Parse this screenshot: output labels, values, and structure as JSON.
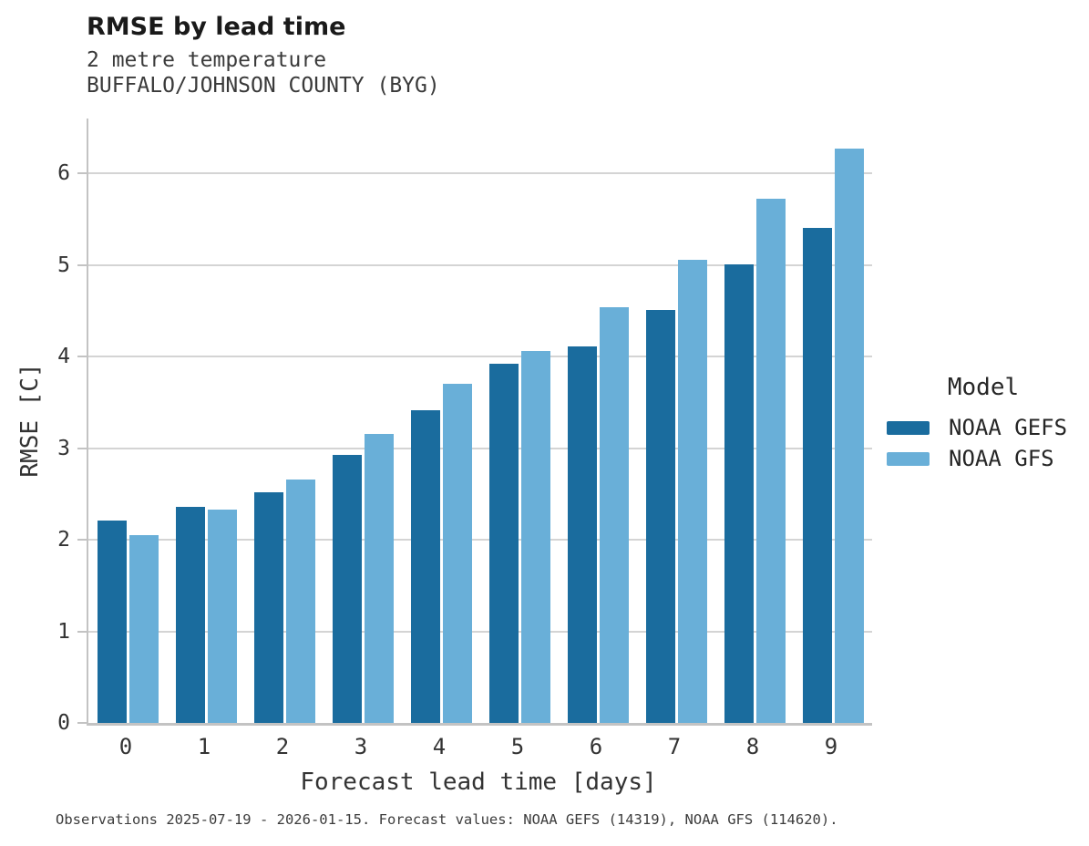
{
  "header": {
    "title": "RMSE by lead time",
    "subtitle_line1": "2 metre temperature",
    "subtitle_line2": "BUFFALO/JOHNSON COUNTY (BYG)"
  },
  "axes": {
    "y_label": "RMSE [C]",
    "x_label": "Forecast lead time [days]",
    "y_ticks": [
      0,
      1,
      2,
      3,
      4,
      5,
      6
    ],
    "y_max": 6.6
  },
  "legend": {
    "title": "Model",
    "items": [
      {
        "label": "NOAA GEFS",
        "color": "#1a6c9e"
      },
      {
        "label": "NOAA GFS",
        "color": "#69afd8"
      }
    ]
  },
  "footer": {
    "text": "Observations 2025-07-19 - 2026-01-15. Forecast values: NOAA GEFS (14319), NOAA GFS (114620)."
  },
  "chart_data": {
    "type": "bar",
    "title": "RMSE by lead time",
    "subtitle_lines": [
      "2 metre temperature",
      "BUFFALO/JOHNSON COUNTY (BYG)"
    ],
    "categories": [
      "0",
      "1",
      "2",
      "3",
      "4",
      "5",
      "6",
      "7",
      "8",
      "9"
    ],
    "series": [
      {
        "name": "NOAA GEFS",
        "color": "#1a6c9e",
        "values": [
          2.21,
          2.36,
          2.52,
          2.93,
          3.41,
          3.92,
          4.11,
          4.51,
          5.01,
          5.41
        ]
      },
      {
        "name": "NOAA GFS",
        "color": "#69afd8",
        "values": [
          2.05,
          2.33,
          2.66,
          3.16,
          3.7,
          4.06,
          4.54,
          5.06,
          5.72,
          6.27
        ]
      }
    ],
    "xlabel": "Forecast lead time [days]",
    "ylabel": "RMSE [C]",
    "ylim": [
      0,
      6.6
    ],
    "grid": true,
    "legend_position": "right",
    "colors": {
      "grid": "#d4d4d4",
      "spine": "#c3c3c3",
      "text": "#333333"
    }
  }
}
